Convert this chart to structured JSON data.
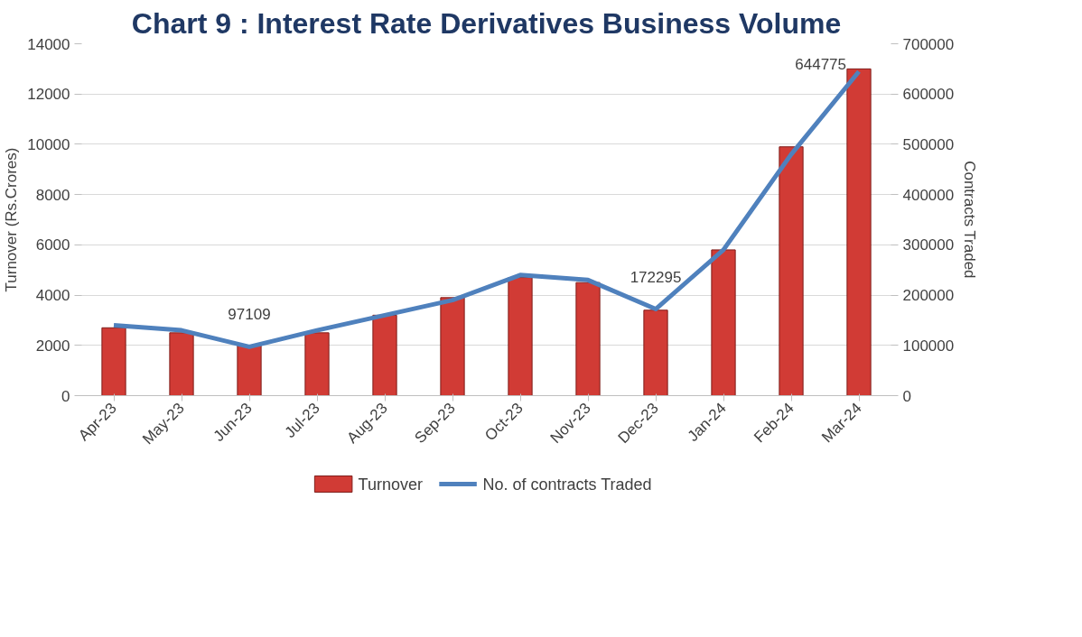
{
  "chart_data": {
    "type": "bar",
    "title": "Chart 9 : Interest Rate Derivatives Business Volume",
    "ylabel": "Turnover (Rs.Crores)",
    "y2label": "Contracts Traded",
    "categories": [
      "Apr-23",
      "May-23",
      "Jun-23",
      "Jul-23",
      "Aug-23",
      "Sep-23",
      "Oct-23",
      "Nov-23",
      "Dec-23",
      "Jan-24",
      "Feb-24",
      "Mar-24"
    ],
    "series": [
      {
        "name": "Turnover",
        "color": "#d13b35",
        "values": [
          2700,
          2500,
          2000,
          2500,
          3200,
          3900,
          4700,
          4500,
          3400,
          5800,
          9900,
          13000
        ]
      },
      {
        "name": "No. of contracts Traded",
        "type": "line",
        "axis": "y2",
        "color": "#4f81bd",
        "values": [
          140000,
          130000,
          97109,
          130000,
          160000,
          190000,
          240000,
          230000,
          172295,
          290000,
          480000,
          644775
        ],
        "value_labels": [
          null,
          null,
          "97109",
          null,
          null,
          null,
          null,
          null,
          "172295",
          null,
          null,
          "644775"
        ]
      }
    ],
    "ylim": [
      0,
      14000
    ],
    "yticks": [
      0,
      2000,
      4000,
      6000,
      8000,
      10000,
      12000,
      14000
    ],
    "y2lim": [
      0,
      700000
    ],
    "y2ticks": [
      0,
      100000,
      200000,
      300000,
      400000,
      500000,
      600000,
      700000
    ],
    "grid": "y",
    "legend": "bottom"
  }
}
